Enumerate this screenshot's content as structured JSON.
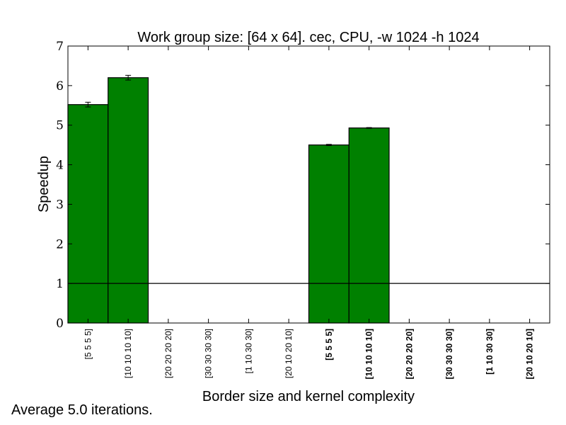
{
  "chart_data": {
    "type": "bar",
    "title": "Work group size: [64 x 64]. cec, CPU, -w 1024 -h 1024",
    "xlabel": "Border size and kernel complexity",
    "ylabel": "Speedup",
    "ylim": [
      0,
      7
    ],
    "yticks": [
      "0",
      "1",
      "2",
      "3",
      "4",
      "5",
      "6",
      "7"
    ],
    "categories": [
      "[5 5 5 5]",
      "[10 10 10 10]",
      "[20 20 20 20]",
      "[30 30 30 30]",
      "[1 10 30 30]",
      "[20 10 20 10]",
      "[5 5 5 5]",
      "[10 10 10 10]",
      "[20 20 20 20]",
      "[30 30 30 30]",
      "[1 10 30 30]",
      "[20 10 20 10]"
    ],
    "bold_categories": [
      false,
      false,
      false,
      false,
      false,
      false,
      true,
      true,
      true,
      true,
      true,
      true
    ],
    "values": [
      5.52,
      6.2,
      0,
      0,
      0,
      0,
      4.5,
      4.93,
      0,
      0,
      0,
      0
    ],
    "errors": [
      0.06,
      0.06,
      0,
      0,
      0,
      0,
      0.015,
      0.01,
      0,
      0,
      0,
      0
    ],
    "reference_line": 1,
    "bar_color": "#008000",
    "grid": false
  },
  "footnote": "Average 5.0 iterations."
}
